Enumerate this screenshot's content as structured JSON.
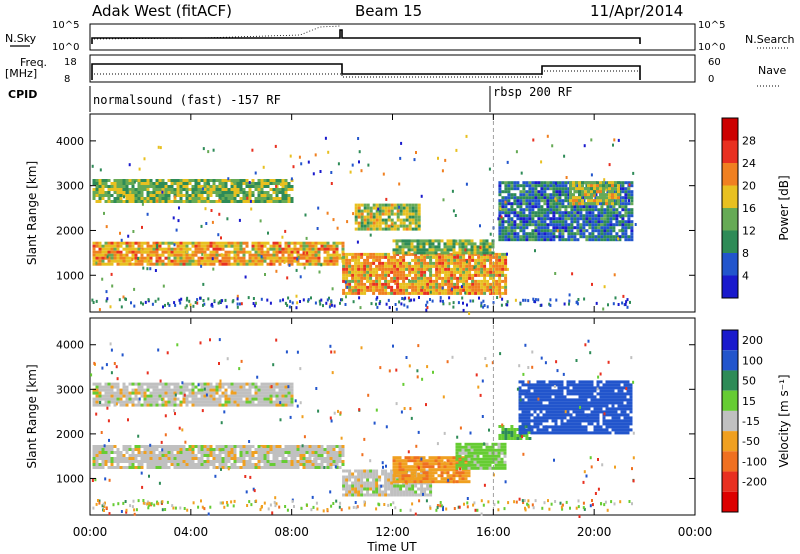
{
  "header": {
    "radar": "Adak West (fitACF)",
    "beam": "Beam 15",
    "date": "11/Apr/2014"
  },
  "top_panels": {
    "nsky_label": "N.Sky",
    "nsky_ticks": [
      "10^5",
      "10^0"
    ],
    "nsearch_label": "N.Search",
    "freq_label_1": "Freq.",
    "freq_label_2": "[MHz]",
    "freq_ticks": [
      "18",
      "8"
    ],
    "nave_label": "Nave",
    "nave_ticks": [
      "60",
      "0"
    ],
    "cpid_label": "CPID",
    "cpid_segments": [
      "normalsound (fast) -157 RF",
      "rbsp 200 RF"
    ]
  },
  "chart_data": [
    {
      "type": "heatmap",
      "panel": "power",
      "ylabel": "Slant Range [km]",
      "xlabel": "Time UT",
      "x_ticks": [
        "00:00",
        "04:00",
        "08:00",
        "12:00",
        "16:00",
        "20:00",
        "00:00"
      ],
      "x_range_hours": [
        0,
        24
      ],
      "y_ticks": [
        1000,
        2000,
        3000,
        4000
      ],
      "ylim": [
        180,
        4600
      ],
      "colorbar_label": "Power [dB]",
      "colorbar_ticks": [
        "4",
        "8",
        "12",
        "16",
        "20",
        "24",
        "28"
      ],
      "colors": [
        "#1a1acc",
        "#2255cc",
        "#2e8b57",
        "#66aa55",
        "#e8c020",
        "#f08020",
        "#e83020",
        "#cc0000"
      ],
      "bands": [
        {
          "t0": 0.1,
          "t1": 10.0,
          "r0": 1250,
          "r1": 1750,
          "value": 20
        },
        {
          "t0": 0.1,
          "t1": 8.0,
          "r0": 2650,
          "r1": 3150,
          "value": 14
        },
        {
          "t0": 10.0,
          "t1": 16.5,
          "r0": 600,
          "r1": 1500,
          "value": 20
        },
        {
          "t0": 12.0,
          "t1": 16.0,
          "r0": 1500,
          "r1": 1800,
          "value": 14
        },
        {
          "t0": 10.5,
          "t1": 13.0,
          "r0": 2000,
          "r1": 2600,
          "value": 16
        },
        {
          "t0": 16.2,
          "t1": 21.5,
          "r0": 1800,
          "r1": 3100,
          "value": 8
        },
        {
          "t0": 19.0,
          "t1": 21.0,
          "r0": 2600,
          "r1": 3100,
          "value": 16
        }
      ]
    },
    {
      "type": "heatmap",
      "panel": "velocity",
      "ylabel": "Slant Range [km]",
      "xlabel": "Time UT",
      "x_ticks": [
        "00:00",
        "04:00",
        "08:00",
        "12:00",
        "16:00",
        "20:00",
        "00:00"
      ],
      "x_range_hours": [
        0,
        24
      ],
      "y_ticks": [
        1000,
        2000,
        3000,
        4000
      ],
      "ylim": [
        180,
        4600
      ],
      "colorbar_label": "Velocity [m s⁻¹]",
      "colorbar_ticks": [
        "200",
        "100",
        "50",
        "15",
        "-15",
        "-50",
        "-100",
        "-200"
      ],
      "colors": [
        "#1a1acc",
        "#2255cc",
        "#2e8b57",
        "#66cc33",
        "#c0c0c0",
        "#f0a020",
        "#f07020",
        "#e83020",
        "#dd0000"
      ],
      "bands": [
        {
          "t0": 0.1,
          "t1": 10.0,
          "r0": 1250,
          "r1": 1750,
          "value": 0
        },
        {
          "t0": 0.1,
          "t1": 8.0,
          "r0": 2650,
          "r1": 3150,
          "value": 0
        },
        {
          "t0": 10.0,
          "t1": 13.5,
          "r0": 600,
          "r1": 1200,
          "value": 0
        },
        {
          "t0": 12.0,
          "t1": 15.0,
          "r0": 900,
          "r1": 1500,
          "value": -40
        },
        {
          "t0": 14.5,
          "t1": 16.5,
          "r0": 1200,
          "r1": 1800,
          "value": 30
        },
        {
          "t0": 16.2,
          "t1": 17.5,
          "r0": 1900,
          "r1": 2200,
          "value": 40
        },
        {
          "t0": 17.0,
          "t1": 21.5,
          "r0": 2000,
          "r1": 3200,
          "value": 150
        }
      ]
    }
  ]
}
